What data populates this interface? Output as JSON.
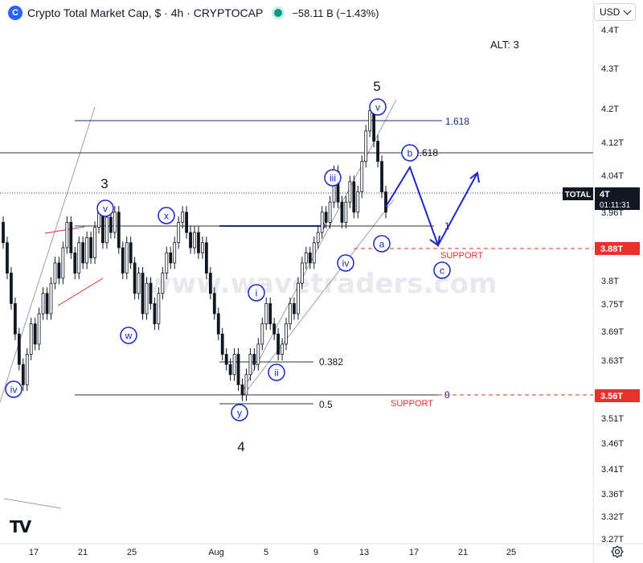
{
  "header": {
    "logo_text": "C",
    "title": "Crypto Total Market Cap, $ · 4h · CRYPTOCAP",
    "change": "−58.11 B (−1.43%)",
    "currency": "USD"
  },
  "icons": {
    "logo": "crypto-logo-icon",
    "status": "market-status-dot-icon",
    "currency_dropdown": "chevron-down-icon",
    "tradingview": "tradingview-logo-icon",
    "settings": "gear-icon"
  },
  "colors": {
    "wave_blue": "#1a27c9",
    "support_red": "#e5322d",
    "candle": "#131722",
    "channel_gray": "#9e9e9e",
    "fib_blue": "#1c2a8a"
  },
  "chart_data": {
    "type": "candlestick",
    "title": "Crypto Total Market Cap, $ · 4h · CRYPTOCAP",
    "annotation_alt": "ALT: 3",
    "watermark": "www.wavetraders.com",
    "y_unit": "T (trillion USD)",
    "y_ticks": [
      "4.4T",
      "4.3T",
      "4.2T",
      "4.12T",
      "4.04T",
      "3.96T",
      "3.88T",
      "3.8T",
      "3.75T",
      "3.69T",
      "3.63T",
      "3.57T",
      "3.51T",
      "3.46T",
      "3.41T",
      "3.36T",
      "3.32T",
      "3.27T"
    ],
    "x_ticks": [
      "17",
      "21",
      "25",
      "Aug",
      "5",
      "9",
      "13",
      "17",
      "21",
      "25"
    ],
    "price_badges": [
      {
        "label": "TOTAL",
        "value": "4T",
        "timer": "01:11:31",
        "color": "#131722"
      },
      {
        "label": "",
        "value": "3.88T",
        "color": "#e5322d"
      },
      {
        "label": "",
        "value": "3.56T",
        "color": "#e5322d"
      }
    ],
    "fib_levels": [
      {
        "label": "1.618",
        "price": 4.16
      },
      {
        "label": "2.618",
        "price": 4.1
      },
      {
        "label": "1",
        "price": 3.92
      },
      {
        "label": "0",
        "price": 3.92
      },
      {
        "label": "0.382",
        "price": 3.62
      },
      {
        "label": "0.5",
        "price": 3.53
      },
      {
        "label": "0",
        "price": 3.56
      }
    ],
    "support_labels": [
      {
        "text": "SUPPORT",
        "price": 3.88
      },
      {
        "text": "SUPPORT",
        "price": 3.56
      }
    ],
    "wave_labels_plain": [
      "3",
      "5",
      "4"
    ],
    "wave_labels_circled": [
      "iv",
      "v",
      "w",
      "x",
      "y",
      "i",
      "ii",
      "iii",
      "iv",
      "v",
      "a",
      "b",
      "c"
    ],
    "candles": [
      [
        3.9,
        3.86
      ],
      [
        3.86,
        3.8
      ],
      [
        3.8,
        3.74
      ],
      [
        3.74,
        3.68
      ],
      [
        3.68,
        3.62
      ],
      [
        3.62,
        3.58
      ],
      [
        3.58,
        3.64
      ],
      [
        3.64,
        3.7
      ],
      [
        3.7,
        3.66
      ],
      [
        3.66,
        3.72
      ],
      [
        3.72,
        3.76
      ],
      [
        3.76,
        3.72
      ],
      [
        3.72,
        3.78
      ],
      [
        3.78,
        3.82
      ],
      [
        3.82,
        3.79
      ],
      [
        3.79,
        3.85
      ],
      [
        3.85,
        3.9
      ],
      [
        3.9,
        3.84
      ],
      [
        3.84,
        3.8
      ],
      [
        3.8,
        3.86
      ],
      [
        3.86,
        3.82
      ],
      [
        3.82,
        3.87
      ],
      [
        3.87,
        3.83
      ],
      [
        3.83,
        3.89
      ],
      [
        3.89,
        3.92
      ],
      [
        3.92,
        3.86
      ],
      [
        3.86,
        3.91
      ],
      [
        3.91,
        3.88
      ],
      [
        3.88,
        3.92
      ],
      [
        3.92,
        3.85
      ],
      [
        3.85,
        3.8
      ],
      [
        3.8,
        3.86
      ],
      [
        3.86,
        3.82
      ],
      [
        3.82,
        3.76
      ],
      [
        3.76,
        3.8
      ],
      [
        3.8,
        3.72
      ],
      [
        3.72,
        3.78
      ],
      [
        3.78,
        3.74
      ],
      [
        3.74,
        3.7
      ],
      [
        3.7,
        3.76
      ],
      [
        3.76,
        3.8
      ],
      [
        3.8,
        3.84
      ],
      [
        3.84,
        3.82
      ],
      [
        3.82,
        3.86
      ],
      [
        3.86,
        3.9
      ],
      [
        3.9,
        3.92
      ],
      [
        3.92,
        3.88
      ],
      [
        3.88,
        3.85
      ],
      [
        3.85,
        3.88
      ],
      [
        3.88,
        3.84
      ],
      [
        3.84,
        3.86
      ],
      [
        3.86,
        3.8
      ],
      [
        3.8,
        3.76
      ],
      [
        3.76,
        3.72
      ],
      [
        3.72,
        3.68
      ],
      [
        3.68,
        3.64
      ],
      [
        3.64,
        3.62
      ],
      [
        3.62,
        3.6
      ],
      [
        3.6,
        3.64
      ],
      [
        3.64,
        3.58
      ],
      [
        3.58,
        3.56
      ],
      [
        3.56,
        3.6
      ],
      [
        3.6,
        3.64
      ],
      [
        3.64,
        3.62
      ],
      [
        3.62,
        3.66
      ],
      [
        3.66,
        3.7
      ],
      [
        3.7,
        3.74
      ],
      [
        3.74,
        3.7
      ],
      [
        3.7,
        3.68
      ],
      [
        3.68,
        3.64
      ],
      [
        3.64,
        3.66
      ],
      [
        3.66,
        3.7
      ],
      [
        3.7,
        3.74
      ],
      [
        3.74,
        3.72
      ],
      [
        3.72,
        3.78
      ],
      [
        3.78,
        3.82
      ],
      [
        3.82,
        3.84
      ],
      [
        3.84,
        3.82
      ],
      [
        3.82,
        3.86
      ],
      [
        3.86,
        3.88
      ],
      [
        3.88,
        3.92
      ],
      [
        3.92,
        3.9
      ],
      [
        3.9,
        3.94
      ],
      [
        3.94,
        4.0
      ],
      [
        4.0,
        3.94
      ],
      [
        3.94,
        3.9
      ],
      [
        3.9,
        3.94
      ],
      [
        3.94,
        3.98
      ],
      [
        3.98,
        3.92
      ],
      [
        3.92,
        3.96
      ],
      [
        3.96,
        4.02
      ],
      [
        4.02,
        4.08
      ],
      [
        4.08,
        4.12
      ],
      [
        4.12,
        4.06
      ],
      [
        4.06,
        4.02
      ],
      [
        4.02,
        3.96
      ],
      [
        3.96,
        3.92
      ]
    ]
  }
}
